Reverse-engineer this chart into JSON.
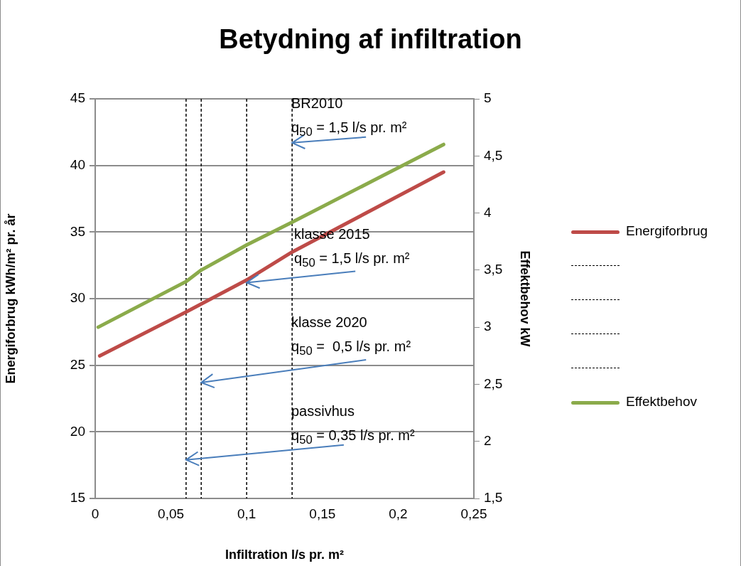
{
  "chart_data": {
    "type": "line",
    "title": "Betydning af infiltration",
    "xlabel": "Infiltration l/s pr. m²",
    "ylabel": "Energiforbrug kWh/m² pr. år",
    "y2label": "Effektbehov kW",
    "series": [
      {
        "name": "Energiforbrug",
        "color": "#be4b48",
        "x": [
          0.003,
          0.06,
          0.1,
          0.13,
          0.23
        ],
        "values": [
          25.7,
          29.0,
          31.4,
          33.5,
          39.5
        ]
      },
      {
        "name": "Effektbehov",
        "color": "#8bab4b",
        "axis": "y2",
        "x": [
          0.002,
          0.06,
          0.07,
          0.1,
          0.13,
          0.23
        ],
        "values": [
          3.0,
          3.4,
          3.5,
          3.72,
          3.92,
          4.6
        ]
      }
    ],
    "xlim": [
      0,
      0.25
    ],
    "xticks": [
      0,
      {
        "value": 0.05,
        "label": "0,05"
      },
      {
        "value": 0.1,
        "label": "0,1"
      },
      {
        "value": 0.15,
        "label": "0,15"
      },
      {
        "value": 0.2,
        "label": "0,2"
      },
      {
        "value": 0.25,
        "label": "0,25"
      }
    ],
    "ylim": [
      15,
      45
    ],
    "yticks": [
      15,
      20,
      25,
      30,
      35,
      40,
      45
    ],
    "y2lim": [
      1.5,
      5
    ],
    "y2ticks": [
      {
        "value": 1.5,
        "label": "1,5"
      },
      2,
      {
        "value": 2.5,
        "label": "2,5"
      },
      3,
      {
        "value": 3.5,
        "label": "3,5"
      },
      4,
      {
        "value": 4.5,
        "label": "4,5"
      },
      5
    ],
    "ref_lines": [
      {
        "axis": "x",
        "value": 0.06,
        "color": "#000000",
        "line_style": "dashed"
      },
      {
        "axis": "x",
        "value": 0.07,
        "color": "#000000",
        "line_style": "dashed"
      },
      {
        "axis": "x",
        "value": 0.1,
        "color": "#000000",
        "line_style": "dashed"
      },
      {
        "axis": "x",
        "value": 0.13,
        "color": "#000000",
        "line_style": "dashed"
      }
    ],
    "annotations": [
      {
        "text": "BR2010\nq$_{50}$ = 1,5 l/s pr. m²",
        "x": 0.13,
        "y": 41.7
      },
      {
        "text": "klasse 2015\nq$_{50}$ = 1,5 l/s pr. m²",
        "x": 0.1,
        "y": 31.2
      },
      {
        "text": "klasse 2020\nq$_{50}$ =  0,5 l/s pr. m²",
        "x": 0.07,
        "y": 23.7
      },
      {
        "text": "passivhus\nq$_{50}$ = 0,35 l/s pr. m²",
        "x": 0.06,
        "y": 17.9
      }
    ],
    "grid": "y",
    "legend": "right",
    "marker": "none",
    "line_style": "solid"
  }
}
